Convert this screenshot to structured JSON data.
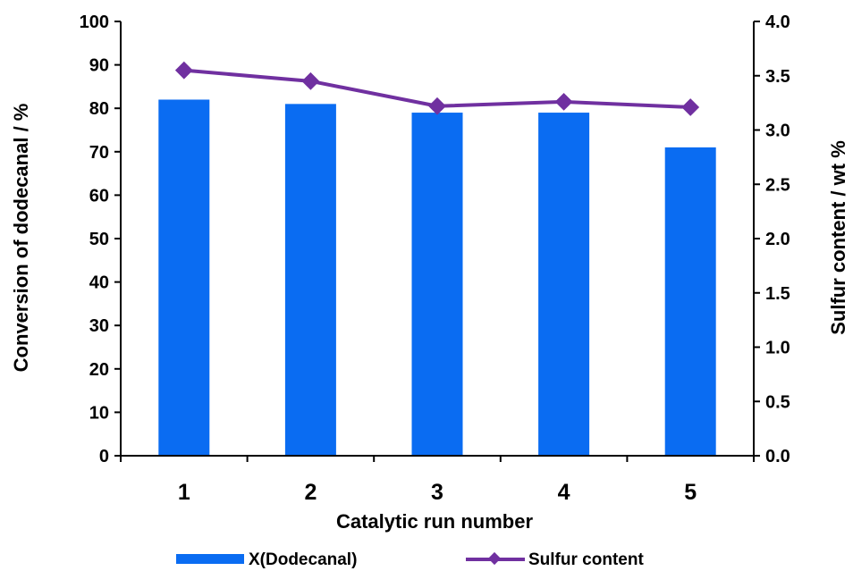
{
  "chart_data": {
    "type": "bar",
    "categories": [
      "1",
      "2",
      "3",
      "4",
      "5"
    ],
    "series": [
      {
        "name": "X(Dodecanal)",
        "type": "bar",
        "axis": "left",
        "values": [
          82,
          81,
          79,
          79,
          71
        ]
      },
      {
        "name": "Sulfur content",
        "type": "line",
        "axis": "right",
        "values": [
          3.55,
          3.45,
          3.22,
          3.26,
          3.21
        ]
      }
    ],
    "title": "",
    "xlabel": "Catalytic run number",
    "ylabel": "Conversion of dodecanal / %",
    "y2label": "Sulfur content / wt %",
    "ylim": [
      0,
      100
    ],
    "y2lim": [
      0,
      4.0
    ],
    "yticks": [
      "0",
      "10",
      "20",
      "30",
      "40",
      "50",
      "60",
      "70",
      "80",
      "90",
      "100"
    ],
    "y2ticks": [
      "0.0",
      "0.5",
      "1.0",
      "1.5",
      "2.0",
      "2.5",
      "3.0",
      "3.5",
      "4.0"
    ],
    "grid": false,
    "legend_position": "bottom",
    "colors": {
      "bar": "#0a6cf2",
      "line": "#7030a0",
      "axis": "#000000"
    }
  }
}
